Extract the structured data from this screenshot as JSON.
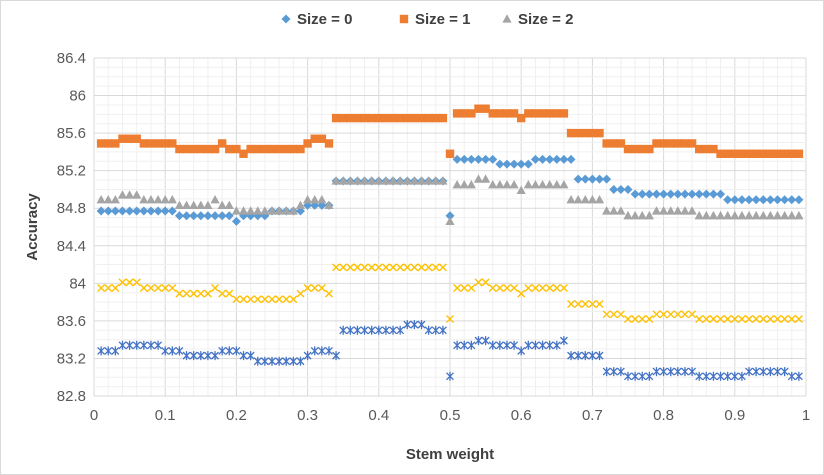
{
  "chart_data": {
    "type": "scatter",
    "title": "",
    "xlabel": "Stem weight",
    "ylabel": "Accuracy",
    "xlim": [
      0,
      1
    ],
    "ylim": [
      82.8,
      86.4
    ],
    "x_ticks": [
      "0",
      "0.1",
      "0.2",
      "0.3",
      "0.4",
      "0.5",
      "0.6",
      "0.7",
      "0.8",
      "0.9",
      "1"
    ],
    "y_ticks": [
      "82.8",
      "83.2",
      "83.6",
      "84",
      "84.4",
      "84.8",
      "85.2",
      "85.6",
      "86",
      "86.4"
    ],
    "grid": true,
    "legend_position": "top",
    "x": [
      0.01,
      0.02,
      0.03,
      0.04,
      0.05,
      0.06,
      0.07,
      0.08,
      0.09,
      0.1,
      0.11,
      0.12,
      0.13,
      0.14,
      0.15,
      0.16,
      0.17,
      0.18,
      0.19,
      0.2,
      0.21,
      0.22,
      0.23,
      0.24,
      0.25,
      0.26,
      0.27,
      0.28,
      0.29,
      0.3,
      0.31,
      0.32,
      0.33,
      0.34,
      0.35,
      0.36,
      0.37,
      0.38,
      0.39,
      0.4,
      0.41,
      0.42,
      0.43,
      0.44,
      0.45,
      0.46,
      0.47,
      0.48,
      0.49,
      0.5,
      0.51,
      0.52,
      0.53,
      0.54,
      0.55,
      0.56,
      0.57,
      0.58,
      0.59,
      0.6,
      0.61,
      0.62,
      0.63,
      0.64,
      0.65,
      0.66,
      0.67,
      0.68,
      0.69,
      0.7,
      0.71,
      0.72,
      0.73,
      0.74,
      0.75,
      0.76,
      0.77,
      0.78,
      0.79,
      0.8,
      0.81,
      0.82,
      0.83,
      0.84,
      0.85,
      0.86,
      0.87,
      0.88,
      0.89,
      0.9,
      0.91,
      0.92,
      0.93,
      0.94,
      0.95,
      0.96,
      0.97,
      0.98,
      0.99
    ],
    "series": [
      {
        "name": "Size = 0",
        "marker": "diamond",
        "color": "#5b9bd5",
        "values": [
          84.77,
          84.77,
          84.77,
          84.77,
          84.77,
          84.77,
          84.77,
          84.77,
          84.77,
          84.77,
          84.77,
          84.72,
          84.72,
          84.72,
          84.72,
          84.72,
          84.72,
          84.72,
          84.72,
          84.66,
          84.72,
          84.72,
          84.72,
          84.72,
          84.77,
          84.77,
          84.77,
          84.77,
          84.77,
          84.83,
          84.83,
          84.83,
          84.83,
          85.09,
          85.09,
          85.09,
          85.09,
          85.09,
          85.09,
          85.09,
          85.09,
          85.09,
          85.09,
          85.09,
          85.09,
          85.09,
          85.09,
          85.09,
          85.09,
          84.72,
          85.32,
          85.32,
          85.32,
          85.32,
          85.32,
          85.32,
          85.27,
          85.27,
          85.27,
          85.27,
          85.27,
          85.32,
          85.32,
          85.32,
          85.32,
          85.32,
          85.32,
          85.11,
          85.11,
          85.11,
          85.11,
          85.11,
          85.0,
          85.0,
          85.0,
          84.95,
          84.95,
          84.95,
          84.95,
          84.95,
          84.95,
          84.95,
          84.95,
          84.95,
          84.95,
          84.95,
          84.95,
          84.95,
          84.89,
          84.89,
          84.89,
          84.89,
          84.89,
          84.89,
          84.89,
          84.89,
          84.89,
          84.89,
          84.89
        ]
      },
      {
        "name": "Size = 1",
        "marker": "square",
        "color": "#ed7d31",
        "values": [
          85.49,
          85.49,
          85.49,
          85.54,
          85.54,
          85.54,
          85.49,
          85.49,
          85.49,
          85.49,
          85.49,
          85.43,
          85.43,
          85.43,
          85.43,
          85.43,
          85.43,
          85.49,
          85.43,
          85.43,
          85.38,
          85.43,
          85.43,
          85.43,
          85.43,
          85.43,
          85.43,
          85.43,
          85.43,
          85.49,
          85.54,
          85.54,
          85.49,
          85.76,
          85.76,
          85.76,
          85.76,
          85.76,
          85.76,
          85.76,
          85.76,
          85.76,
          85.76,
          85.76,
          85.76,
          85.76,
          85.76,
          85.76,
          85.76,
          85.38,
          85.81,
          85.81,
          85.81,
          85.86,
          85.86,
          85.81,
          85.81,
          85.81,
          85.81,
          85.76,
          85.81,
          85.81,
          85.81,
          85.81,
          85.81,
          85.81,
          85.6,
          85.6,
          85.6,
          85.6,
          85.6,
          85.49,
          85.49,
          85.49,
          85.43,
          85.43,
          85.43,
          85.43,
          85.49,
          85.49,
          85.49,
          85.49,
          85.49,
          85.49,
          85.43,
          85.43,
          85.43,
          85.38,
          85.38,
          85.38,
          85.38,
          85.38,
          85.38,
          85.38,
          85.38,
          85.38,
          85.38,
          85.38,
          85.38
        ]
      },
      {
        "name": "Size = 2",
        "marker": "triangle",
        "color": "#a5a5a5",
        "values": [
          84.89,
          84.89,
          84.89,
          84.94,
          84.94,
          84.94,
          84.89,
          84.89,
          84.89,
          84.89,
          84.89,
          84.83,
          84.83,
          84.83,
          84.83,
          84.83,
          84.89,
          84.83,
          84.83,
          84.77,
          84.77,
          84.77,
          84.77,
          84.77,
          84.77,
          84.77,
          84.77,
          84.77,
          84.83,
          84.89,
          84.89,
          84.89,
          84.83,
          85.09,
          85.09,
          85.09,
          85.09,
          85.09,
          85.09,
          85.09,
          85.09,
          85.09,
          85.09,
          85.09,
          85.09,
          85.09,
          85.09,
          85.09,
          85.09,
          84.66,
          85.05,
          85.05,
          85.05,
          85.11,
          85.11,
          85.05,
          85.05,
          85.05,
          85.05,
          84.99,
          85.05,
          85.05,
          85.05,
          85.05,
          85.05,
          85.05,
          84.89,
          84.89,
          84.89,
          84.89,
          84.89,
          84.77,
          84.77,
          84.77,
          84.72,
          84.72,
          84.72,
          84.72,
          84.77,
          84.77,
          84.77,
          84.77,
          84.77,
          84.77,
          84.72,
          84.72,
          84.72,
          84.72,
          84.72,
          84.72,
          84.72,
          84.72,
          84.72,
          84.72,
          84.72,
          84.72,
          84.72,
          84.72,
          84.72
        ]
      },
      {
        "name": "",
        "marker": "x",
        "color": "#ffc000",
        "values": [
          83.95,
          83.95,
          83.95,
          84.01,
          84.01,
          84.01,
          83.95,
          83.95,
          83.95,
          83.95,
          83.95,
          83.89,
          83.89,
          83.89,
          83.89,
          83.89,
          83.95,
          83.89,
          83.89,
          83.83,
          83.83,
          83.83,
          83.83,
          83.83,
          83.83,
          83.83,
          83.83,
          83.83,
          83.89,
          83.95,
          83.95,
          83.95,
          83.89,
          84.17,
          84.17,
          84.17,
          84.17,
          84.17,
          84.17,
          84.17,
          84.17,
          84.17,
          84.17,
          84.17,
          84.17,
          84.17,
          84.17,
          84.17,
          84.17,
          83.62,
          83.95,
          83.95,
          83.95,
          84.01,
          84.01,
          83.95,
          83.95,
          83.95,
          83.95,
          83.89,
          83.95,
          83.95,
          83.95,
          83.95,
          83.95,
          83.95,
          83.78,
          83.78,
          83.78,
          83.78,
          83.78,
          83.67,
          83.67,
          83.67,
          83.62,
          83.62,
          83.62,
          83.62,
          83.67,
          83.67,
          83.67,
          83.67,
          83.67,
          83.67,
          83.62,
          83.62,
          83.62,
          83.62,
          83.62,
          83.62,
          83.62,
          83.62,
          83.62,
          83.62,
          83.62,
          83.62,
          83.62,
          83.62,
          83.62
        ]
      },
      {
        "name": "",
        "marker": "asterisk",
        "color": "#4472c4",
        "values": [
          83.28,
          83.28,
          83.28,
          83.34,
          83.34,
          83.34,
          83.34,
          83.34,
          83.34,
          83.28,
          83.28,
          83.28,
          83.23,
          83.23,
          83.23,
          83.23,
          83.23,
          83.28,
          83.28,
          83.28,
          83.23,
          83.23,
          83.17,
          83.17,
          83.17,
          83.17,
          83.17,
          83.17,
          83.17,
          83.23,
          83.28,
          83.28,
          83.28,
          83.23,
          83.5,
          83.5,
          83.5,
          83.5,
          83.5,
          83.5,
          83.5,
          83.5,
          83.5,
          83.56,
          83.56,
          83.56,
          83.5,
          83.5,
          83.5,
          83.01,
          83.34,
          83.34,
          83.34,
          83.39,
          83.39,
          83.34,
          83.34,
          83.34,
          83.34,
          83.28,
          83.34,
          83.34,
          83.34,
          83.34,
          83.34,
          83.39,
          83.23,
          83.23,
          83.23,
          83.23,
          83.23,
          83.06,
          83.06,
          83.06,
          83.01,
          83.01,
          83.01,
          83.01,
          83.06,
          83.06,
          83.06,
          83.06,
          83.06,
          83.06,
          83.01,
          83.01,
          83.01,
          83.01,
          83.01,
          83.01,
          83.01,
          83.06,
          83.06,
          83.06,
          83.06,
          83.06,
          83.06,
          83.01,
          83.01
        ]
      }
    ]
  }
}
